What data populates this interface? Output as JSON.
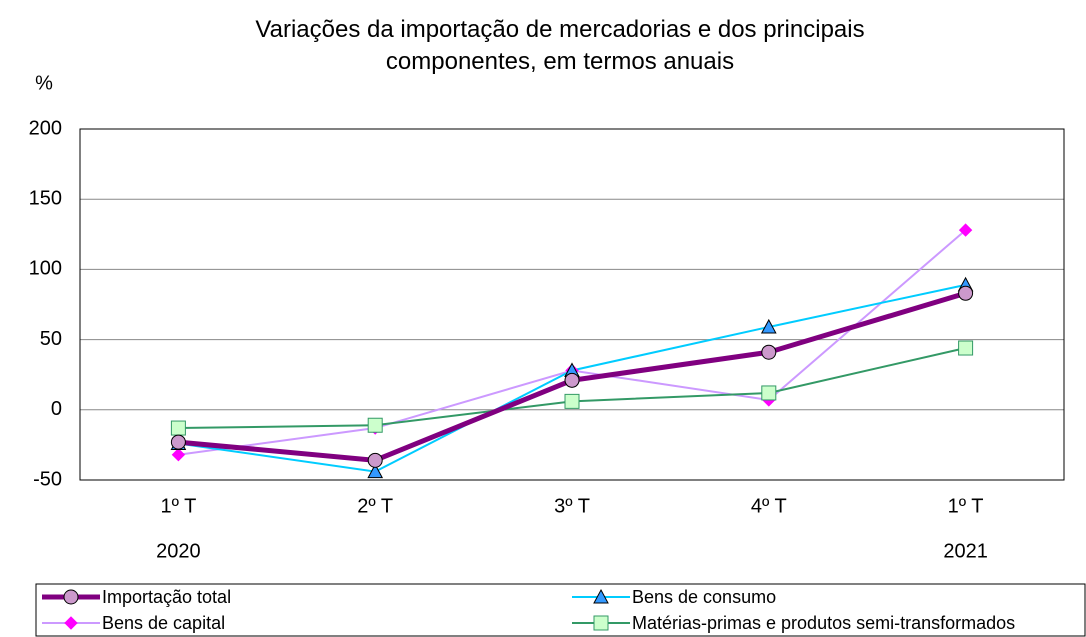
{
  "chart_data": {
    "type": "line",
    "title": "Variações da importação de mercadorias e dos principais componentes, em termos anuais",
    "y_label": "%",
    "categories": [
      "1º T",
      "2º T",
      "3º T",
      "4º T",
      "1º T"
    ],
    "category_groups": [
      "2020",
      null,
      null,
      null,
      "2021"
    ],
    "series": [
      {
        "name": "Importação total",
        "color": "#800080",
        "line_width": 5,
        "marker": "circle",
        "marker_fill": "#cc99cc",
        "values": [
          -23,
          -36,
          21,
          41,
          83
        ]
      },
      {
        "name": "Bens de consumo",
        "color": "#00ccff",
        "line_width": 2,
        "marker": "triangle",
        "marker_fill": "#3399ff",
        "values": [
          -24,
          -44,
          28,
          59,
          89
        ]
      },
      {
        "name": "Bens de capital",
        "color": "#cc99ff",
        "line_width": 2,
        "marker": "diamond",
        "marker_fill": "#ff00ff",
        "values": [
          -32,
          -13,
          28,
          7,
          128
        ]
      },
      {
        "name": "Matérias-primas e produtos semi-transformados",
        "color": "#339966",
        "line_width": 2,
        "marker": "square",
        "marker_fill": "#ccffcc",
        "values": [
          -13,
          -11,
          6,
          12,
          44
        ]
      }
    ],
    "ylim": [
      -50,
      200
    ],
    "yticks": [
      -50,
      0,
      50,
      100,
      150,
      200
    ],
    "grid": true,
    "legend": "bottom"
  }
}
